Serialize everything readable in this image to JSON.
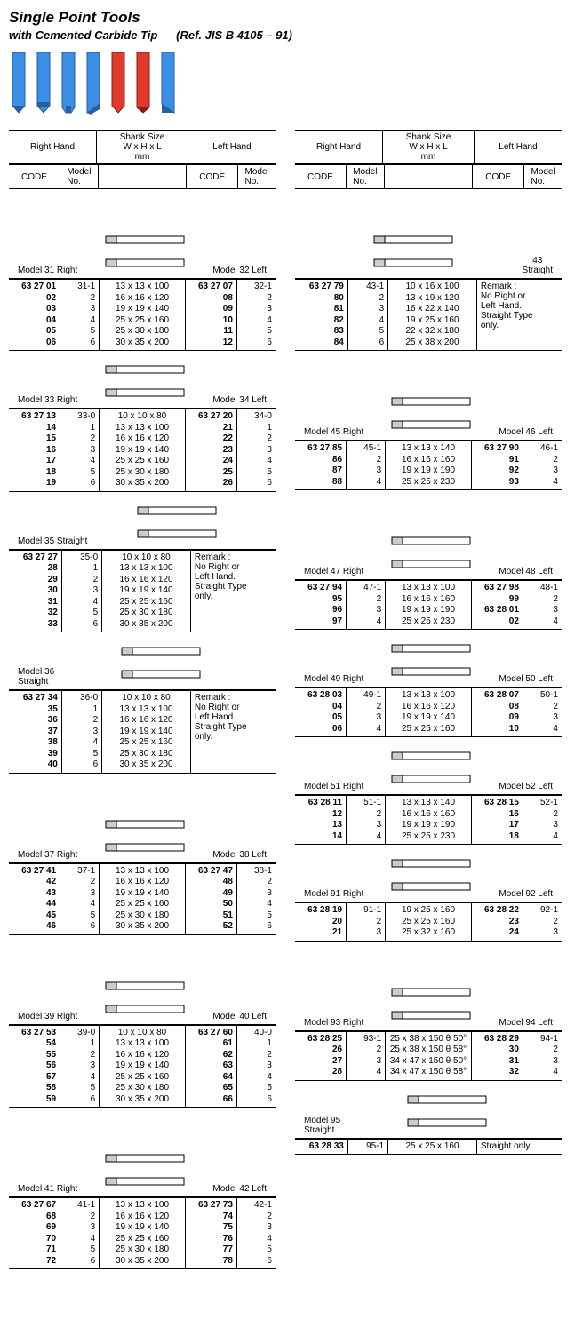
{
  "title": "Single Point Tools",
  "subtitle": "with Cemented Carbide Tip",
  "reference": "(Ref. JIS B 4105 – 91)",
  "colors": {
    "tool_blue": "#3b8ee6",
    "tool_red": "#e03a2d",
    "tool_dark": "#2a5f9e"
  },
  "header_labels": {
    "right_hand": "Right Hand",
    "left_hand": "Left Hand",
    "code": "CODE",
    "model_no": "Model\nNo.",
    "shank": "Shank Size\nW x H x L\nmm",
    "straight_43": "43\nStraight"
  },
  "remarks": {
    "straight_only": "Remark :\nNo Right or\nLeft Hand.\nStraight Type\nonly.",
    "straight_only_short": "Straight only."
  },
  "tables": {
    "m31_32": {
      "label_left": "Model 31 Right",
      "label_right": "Model 32 Left",
      "rows": [
        {
          "c1": "63 27 01",
          "m1": "31-1",
          "s": "13 x 13 x 100",
          "c2": "63 27 07",
          "m2": "32-1"
        },
        {
          "c1": "02",
          "m1": "2",
          "s": "16 x 16 x 120",
          "c2": "08",
          "m2": "2"
        },
        {
          "c1": "03",
          "m1": "3",
          "s": "19 x 19 x 140",
          "c2": "09",
          "m2": "3"
        },
        {
          "c1": "04",
          "m1": "4",
          "s": "25 x 25 x 160",
          "c2": "10",
          "m2": "4"
        },
        {
          "c1": "05",
          "m1": "5",
          "s": "25 x 30 x 180",
          "c2": "11",
          "m2": "5"
        },
        {
          "c1": "06",
          "m1": "6",
          "s": "30 x 35 x 200",
          "c2": "12",
          "m2": "6"
        }
      ]
    },
    "m33_34": {
      "label_left": "Model 33 Right",
      "label_right": "Model 34 Left",
      "rows": [
        {
          "c1": "63 27 13",
          "m1": "33-0",
          "s": "10 x 10 x  80",
          "c2": "63 27 20",
          "m2": "34-0"
        },
        {
          "c1": "14",
          "m1": "1",
          "s": "13 x 13 x 100",
          "c2": "21",
          "m2": "1"
        },
        {
          "c1": "15",
          "m1": "2",
          "s": "16 x 16 x 120",
          "c2": "22",
          "m2": "2"
        },
        {
          "c1": "16",
          "m1": "3",
          "s": "19 x 19 x 140",
          "c2": "23",
          "m2": "3"
        },
        {
          "c1": "17",
          "m1": "4",
          "s": "25 x 25 x 160",
          "c2": "24",
          "m2": "4"
        },
        {
          "c1": "18",
          "m1": "5",
          "s": "25 x 30 x 180",
          "c2": "25",
          "m2": "5"
        },
        {
          "c1": "19",
          "m1": "6",
          "s": "30 x 35 x 200",
          "c2": "26",
          "m2": "6"
        }
      ]
    },
    "m35": {
      "label_left": "Model 35 Straight",
      "rows": [
        {
          "c1": "63 27 27",
          "m1": "35-0",
          "s": "10 x 10 x  80"
        },
        {
          "c1": "28",
          "m1": "1",
          "s": "13 x 13 x 100"
        },
        {
          "c1": "29",
          "m1": "2",
          "s": "16 x 16 x 120"
        },
        {
          "c1": "30",
          "m1": "3",
          "s": "19 x 19 x 140"
        },
        {
          "c1": "31",
          "m1": "4",
          "s": "25 x 25 x 160"
        },
        {
          "c1": "32",
          "m1": "5",
          "s": "25 x 30 x 180"
        },
        {
          "c1": "33",
          "m1": "6",
          "s": "30 x 35 x 200"
        }
      ]
    },
    "m36": {
      "label_left": "Model 36\nStraight",
      "rows": [
        {
          "c1": "63 27 34",
          "m1": "36-0",
          "s": "10 x 10 x  80"
        },
        {
          "c1": "35",
          "m1": "1",
          "s": "13 x 13 x 100"
        },
        {
          "c1": "36",
          "m1": "2",
          "s": "16 x 16 x 120"
        },
        {
          "c1": "37",
          "m1": "3",
          "s": "19 x 19 x 140"
        },
        {
          "c1": "38",
          "m1": "4",
          "s": "25 x 25 x 160"
        },
        {
          "c1": "39",
          "m1": "5",
          "s": "25 x 30 x 180"
        },
        {
          "c1": "40",
          "m1": "6",
          "s": "30 x 35 x 200"
        }
      ]
    },
    "m37_38": {
      "label_left": "Model 37 Right",
      "label_right": "Model 38 Left",
      "rows": [
        {
          "c1": "63 27 41",
          "m1": "37-1",
          "s": "13 x 13 x 100",
          "c2": "63 27 47",
          "m2": "38-1"
        },
        {
          "c1": "42",
          "m1": "2",
          "s": "16 x 16 x 120",
          "c2": "48",
          "m2": "2"
        },
        {
          "c1": "43",
          "m1": "3",
          "s": "19 x 19 x 140",
          "c2": "49",
          "m2": "3"
        },
        {
          "c1": "44",
          "m1": "4",
          "s": "25 x 25 x 160",
          "c2": "50",
          "m2": "4"
        },
        {
          "c1": "45",
          "m1": "5",
          "s": "25 x 30 x 180",
          "c2": "51",
          "m2": "5"
        },
        {
          "c1": "46",
          "m1": "6",
          "s": "30 x 35 x 200",
          "c2": "52",
          "m2": "6"
        }
      ]
    },
    "m39_40": {
      "label_left": "Model 39 Right",
      "label_right": "Model 40 Left",
      "rows": [
        {
          "c1": "63 27 53",
          "m1": "39-0",
          "s": "10 x 10 x  80",
          "c2": "63 27 60",
          "m2": "40-0"
        },
        {
          "c1": "54",
          "m1": "1",
          "s": "13 x 13 x 100",
          "c2": "61",
          "m2": "1"
        },
        {
          "c1": "55",
          "m1": "2",
          "s": "16 x 16 x 120",
          "c2": "62",
          "m2": "2"
        },
        {
          "c1": "56",
          "m1": "3",
          "s": "19 x 19 x 140",
          "c2": "63",
          "m2": "3"
        },
        {
          "c1": "57",
          "m1": "4",
          "s": "25 x 25 x 160",
          "c2": "64",
          "m2": "4"
        },
        {
          "c1": "58",
          "m1": "5",
          "s": "25 x 30 x 180",
          "c2": "65",
          "m2": "5"
        },
        {
          "c1": "59",
          "m1": "6",
          "s": "30 x 35 x 200",
          "c2": "66",
          "m2": "6"
        }
      ]
    },
    "m41_42": {
      "label_left": "Model 41 Right",
      "label_right": "Model 42 Left",
      "rows": [
        {
          "c1": "63 27 67",
          "m1": "41-1",
          "s": "13 x 13 x 100",
          "c2": "63 27 73",
          "m2": "42-1"
        },
        {
          "c1": "68",
          "m1": "2",
          "s": "16 x 16 x 120",
          "c2": "74",
          "m2": "2"
        },
        {
          "c1": "69",
          "m1": "3",
          "s": "19 x 19 x 140",
          "c2": "75",
          "m2": "3"
        },
        {
          "c1": "70",
          "m1": "4",
          "s": "25 x 25 x 160",
          "c2": "76",
          "m2": "4"
        },
        {
          "c1": "71",
          "m1": "5",
          "s": "25 x 30 x 180",
          "c2": "77",
          "m2": "5"
        },
        {
          "c1": "72",
          "m1": "6",
          "s": "30 x 35 x 200",
          "c2": "78",
          "m2": "6"
        }
      ]
    },
    "m43": {
      "rows": [
        {
          "c1": "63 27 79",
          "m1": "43-1",
          "s": "10 x 16 x 100"
        },
        {
          "c1": "80",
          "m1": "2",
          "s": "13 x 19 x 120"
        },
        {
          "c1": "81",
          "m1": "3",
          "s": "16 x 22 x 140"
        },
        {
          "c1": "82",
          "m1": "4",
          "s": "19 x 25 x 160"
        },
        {
          "c1": "83",
          "m1": "5",
          "s": "22 x 32 x 180"
        },
        {
          "c1": "84",
          "m1": "6",
          "s": "25 x 38 x 200"
        }
      ]
    },
    "m45_46": {
      "label_left": "Model 45 Right",
      "label_right": "Model 46 Left",
      "rows": [
        {
          "c1": "63 27 85",
          "m1": "45-1",
          "s": "13 x 13 x 140",
          "c2": "63 27 90",
          "m2": "46-1"
        },
        {
          "c1": "86",
          "m1": "2",
          "s": "16 x 16 x 160",
          "c2": "91",
          "m2": "2"
        },
        {
          "c1": "87",
          "m1": "3",
          "s": "19 x 19 x 190",
          "c2": "92",
          "m2": "3"
        },
        {
          "c1": "88",
          "m1": "4",
          "s": "25 x 25 x 230",
          "c2": "93",
          "m2": "4"
        }
      ]
    },
    "m47_48": {
      "label_left": "Model 47 Right",
      "label_right": "Model 48 Left",
      "rows": [
        {
          "c1": "63 27 94",
          "m1": "47-1",
          "s": "13 x 13 x 100",
          "c2": "63 27 98",
          "m2": "48-1"
        },
        {
          "c1": "95",
          "m1": "2",
          "s": "16 x 16 x 160",
          "c2": "99",
          "m2": "2"
        },
        {
          "c1": "96",
          "m1": "3",
          "s": "19 x 19 x 190",
          "c2": "63 28 01",
          "m2": "3"
        },
        {
          "c1": "97",
          "m1": "4",
          "s": "25 x 25 x 230",
          "c2": "02",
          "m2": "4"
        }
      ]
    },
    "m49_50": {
      "label_left": "Model 49 Right",
      "label_right": "Model 50 Left",
      "rows": [
        {
          "c1": "63 28 03",
          "m1": "49-1",
          "s": "13 x 13 x 100",
          "c2": "63 28 07",
          "m2": "50-1"
        },
        {
          "c1": "04",
          "m1": "2",
          "s": "16 x 16 x 120",
          "c2": "08",
          "m2": "2"
        },
        {
          "c1": "05",
          "m1": "3",
          "s": "19 x 19 x 140",
          "c2": "09",
          "m2": "3"
        },
        {
          "c1": "06",
          "m1": "4",
          "s": "25 x 25 x 160",
          "c2": "10",
          "m2": "4"
        }
      ]
    },
    "m51_52": {
      "label_left": "Model 51 Right",
      "label_right": "Model 52 Left",
      "rows": [
        {
          "c1": "63 28 11",
          "m1": "51-1",
          "s": "13 x 13 x 140",
          "c2": "63 28 15",
          "m2": "52-1"
        },
        {
          "c1": "12",
          "m1": "2",
          "s": "16 x 16 x 160",
          "c2": "16",
          "m2": "2"
        },
        {
          "c1": "13",
          "m1": "3",
          "s": "19 x 19 x 190",
          "c2": "17",
          "m2": "3"
        },
        {
          "c1": "14",
          "m1": "4",
          "s": "25 x 25 x 230",
          "c2": "18",
          "m2": "4"
        }
      ]
    },
    "m91_92": {
      "label_left": "Model 91 Right",
      "label_right": "Model 92 Left",
      "rows": [
        {
          "c1": "63 28 19",
          "m1": "91-1",
          "s": "19 x 25 x 160",
          "c2": "63 28 22",
          "m2": "92-1"
        },
        {
          "c1": "20",
          "m1": "2",
          "s": "25 x 25 x 160",
          "c2": "23",
          "m2": "2"
        },
        {
          "c1": "21",
          "m1": "3",
          "s": "25 x 32 x 160",
          "c2": "24",
          "m2": "3"
        }
      ]
    },
    "m93_94": {
      "label_left": "Model 93 Right",
      "label_right": "Model 94 Left",
      "rows": [
        {
          "c1": "63 28 25",
          "m1": "93-1",
          "s": "25 x 38 x 150 θ 50°",
          "c2": "63 28 29",
          "m2": "94-1"
        },
        {
          "c1": "26",
          "m1": "2",
          "s": "25 x 38 x 150 θ 58°",
          "c2": "30",
          "m2": "2"
        },
        {
          "c1": "27",
          "m1": "3",
          "s": "34 x 47 x 150 θ 50°",
          "c2": "31",
          "m2": "3"
        },
        {
          "c1": "28",
          "m1": "4",
          "s": "34 x 47 x 150 θ 58°",
          "c2": "32",
          "m2": "4"
        }
      ]
    },
    "m95": {
      "label_left": "Model 95\nStraight",
      "rows": [
        {
          "c1": "63 28 33",
          "m1": "95-1",
          "s": "25 x 25 x 160"
        }
      ]
    }
  }
}
